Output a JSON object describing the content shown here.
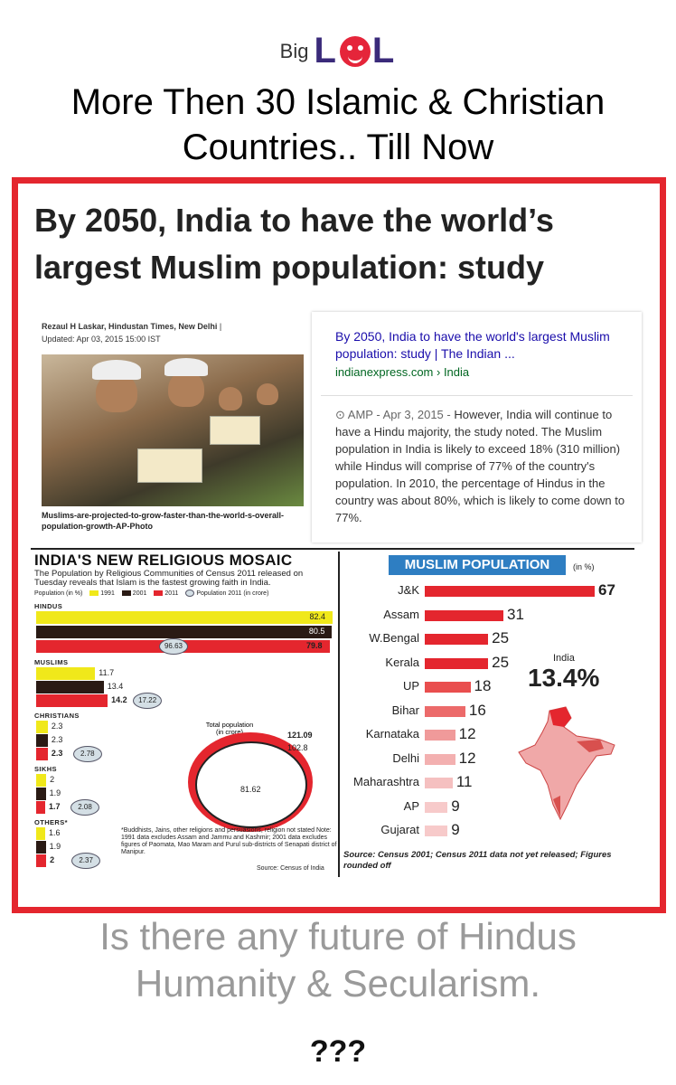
{
  "brand": {
    "big": "Big",
    "lol_left": "L",
    "lol_right": "L"
  },
  "headline": {
    "line1": "More Then 30 Islamic & Christian",
    "line2": "Countries.. Till Now"
  },
  "article": {
    "title_line1": "By 2050, India to have the world’s",
    "title_line2": "largest Muslim population: study",
    "author": "Rezaul H Laskar, Hindustan Times, New Delhi",
    "updated": "Updated: Apr 03, 2015 15:00 IST",
    "caption": "Muslims-are-projected-to-grow-faster-than-the-world-s-overall-population-growth-AP-Photo"
  },
  "search_card": {
    "title": "By 2050, India to have the world's largest Muslim population: study | The Indian ...",
    "url": "indianexpress.com › India",
    "amp": "AMP - Apr 3, 2015 - ",
    "snippet": "However, India will continue to have a Hindu majority, the study noted. The Muslim population in India is likely to exceed 18% (310 million) while Hindus will comprise of 77% of the country's population. In 2010, the percentage of Hindus in the country was about 80%, which is likely to come down to 77%."
  },
  "left_graphic": {
    "title": "INDIA'S NEW RELIGIOUS MOSAIC",
    "subtitle": "The Population by Religious Communities of Census 2011 released on Tuesday reveals that Islam is the fastest growing faith in India.",
    "legend_label": "Population (in %)",
    "legend": [
      "1991",
      "2001",
      "2011",
      "Population 2011"
    ],
    "legend_note": "(in crore)",
    "total_label": "Total population",
    "total_unit": "(in crore)",
    "total_values": [
      "121.09",
      "102.8",
      "81.62"
    ],
    "footnote": "*Buddhists, Jains, other religions and persuasions, religion not stated Note: 1991 data excludes Assam and Jammu and Kashmir; 2001 data excludes figures of Paomata, Mao Maram and Purul sub-districts of Senapati district of Manipur.",
    "source": "Source: Census of India"
  },
  "right_graphic": {
    "title": "MUSLIM POPULATION",
    "unit": "(in %)",
    "india_label": "India",
    "india_pct": "13.4%",
    "source": "Source: Census 2001; Census 2011 data not yet released; Figures rounded off"
  },
  "colors": {
    "frame": "#e4262e",
    "y1991": "#f0e81a",
    "y2001": "#2a1a14",
    "y2011": "#e4262e",
    "muslim_bar": "#e4262e",
    "title_box": "#2e7ec2"
  },
  "bottom": {
    "line1": "Is there any future of Hindus",
    "line2": "Humanity & Secularism.",
    "line3": "???"
  },
  "chart_data": [
    {
      "type": "bar",
      "title": "INDIA'S NEW RELIGIOUS MOSAIC",
      "categories": [
        "HINDUS",
        "MUSLIMS",
        "CHRISTIANS",
        "SIKHS",
        "OTHERS*"
      ],
      "series": [
        {
          "name": "1991",
          "values": [
            82.4,
            11.7,
            2.3,
            2,
            1.6
          ]
        },
        {
          "name": "2001",
          "values": [
            80.5,
            13.4,
            2.3,
            1.9,
            1.9
          ]
        },
        {
          "name": "2011",
          "values": [
            79.8,
            14.2,
            2.3,
            1.7,
            2
          ]
        },
        {
          "name": "Population 2011",
          "values": [
            96.63,
            17.22,
            2.78,
            2.08,
            2.37
          ]
        }
      ]
    },
    {
      "type": "bar",
      "title": "MUSLIM POPULATION",
      "categories": [
        "J&K",
        "Assam",
        "W.Bengal",
        "Kerala",
        "UP",
        "Bihar",
        "Karnataka",
        "Delhi",
        "Maharashtra",
        "AP",
        "Gujarat"
      ],
      "values": [
        67,
        31,
        25,
        25,
        18,
        16,
        12,
        12,
        11,
        9,
        9
      ]
    }
  ]
}
